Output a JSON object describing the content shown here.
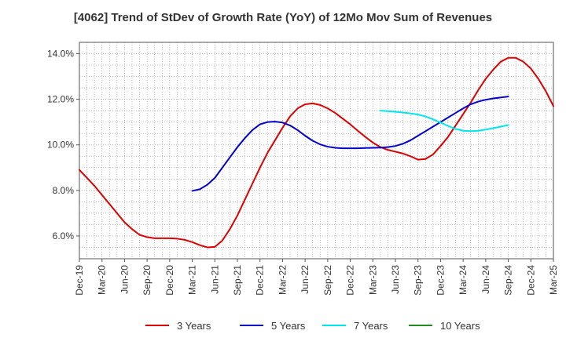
{
  "chart_data": {
    "type": "line",
    "title": "[4062]  Trend of StDev of Growth Rate (YoY) of 12Mo Mov Sum of Revenues",
    "xlabel": "",
    "ylabel": "",
    "x_ticks": [
      "Dec-19",
      "Mar-20",
      "Jun-20",
      "Sep-20",
      "Dec-20",
      "Mar-21",
      "Jun-21",
      "Sep-21",
      "Dec-21",
      "Mar-22",
      "Jun-22",
      "Sep-22",
      "Dec-22",
      "Mar-23",
      "Jun-23",
      "Sep-23",
      "Dec-23",
      "Mar-24",
      "Jun-24",
      "Sep-24",
      "Dec-24",
      "Mar-25"
    ],
    "y_ticks": [
      "6.0%",
      "8.0%",
      "10.0%",
      "12.0%",
      "14.0%"
    ],
    "y_tick_values": [
      6,
      8,
      10,
      12,
      14
    ],
    "ylim": [
      5.0,
      14.5
    ],
    "x_range_months": [
      0,
      63
    ],
    "grid": true,
    "legend_position": "bottom",
    "series": [
      {
        "name": "3 Years",
        "color": "#dd0000",
        "points": [
          [
            0,
            8.9
          ],
          [
            1,
            8.55
          ],
          [
            2,
            8.2
          ],
          [
            3,
            7.8
          ],
          [
            4,
            7.4
          ],
          [
            5,
            7.0
          ],
          [
            6,
            6.6
          ],
          [
            7,
            6.3
          ],
          [
            8,
            6.05
          ],
          [
            9,
            5.95
          ],
          [
            10,
            5.9
          ],
          [
            11,
            5.9
          ],
          [
            12,
            5.9
          ],
          [
            13,
            5.88
          ],
          [
            14,
            5.83
          ],
          [
            15,
            5.73
          ],
          [
            16,
            5.6
          ],
          [
            17,
            5.5
          ],
          [
            18,
            5.52
          ],
          [
            19,
            5.8
          ],
          [
            20,
            6.3
          ],
          [
            21,
            6.9
          ],
          [
            22,
            7.6
          ],
          [
            23,
            8.3
          ],
          [
            24,
            9.0
          ],
          [
            25,
            9.65
          ],
          [
            26,
            10.2
          ],
          [
            27,
            10.75
          ],
          [
            28,
            11.25
          ],
          [
            29,
            11.6
          ],
          [
            30,
            11.78
          ],
          [
            31,
            11.82
          ],
          [
            32,
            11.75
          ],
          [
            33,
            11.6
          ],
          [
            34,
            11.4
          ],
          [
            35,
            11.15
          ],
          [
            36,
            10.9
          ],
          [
            37,
            10.62
          ],
          [
            38,
            10.35
          ],
          [
            39,
            10.1
          ],
          [
            40,
            9.9
          ],
          [
            41,
            9.78
          ],
          [
            42,
            9.7
          ],
          [
            43,
            9.62
          ],
          [
            44,
            9.5
          ],
          [
            45,
            9.35
          ],
          [
            46,
            9.38
          ],
          [
            47,
            9.58
          ],
          [
            48,
            9.95
          ],
          [
            49,
            10.35
          ],
          [
            50,
            10.85
          ],
          [
            51,
            11.35
          ],
          [
            52,
            11.85
          ],
          [
            53,
            12.4
          ],
          [
            54,
            12.9
          ],
          [
            55,
            13.3
          ],
          [
            56,
            13.65
          ],
          [
            57,
            13.82
          ],
          [
            58,
            13.82
          ],
          [
            59,
            13.65
          ],
          [
            60,
            13.35
          ],
          [
            61,
            12.9
          ],
          [
            62,
            12.35
          ],
          [
            63,
            11.7
          ]
        ]
      },
      {
        "name": "5 Years",
        "color": "#0000cc",
        "points": [
          [
            15,
            7.98
          ],
          [
            16,
            8.05
          ],
          [
            17,
            8.25
          ],
          [
            18,
            8.55
          ],
          [
            19,
            9.0
          ],
          [
            20,
            9.45
          ],
          [
            21,
            9.9
          ],
          [
            22,
            10.3
          ],
          [
            23,
            10.65
          ],
          [
            24,
            10.9
          ],
          [
            25,
            11.0
          ],
          [
            26,
            11.02
          ],
          [
            27,
            10.98
          ],
          [
            28,
            10.85
          ],
          [
            29,
            10.65
          ],
          [
            30,
            10.4
          ],
          [
            31,
            10.18
          ],
          [
            32,
            10.02
          ],
          [
            33,
            9.92
          ],
          [
            34,
            9.87
          ],
          [
            35,
            9.85
          ],
          [
            36,
            9.85
          ],
          [
            37,
            9.85
          ],
          [
            38,
            9.86
          ],
          [
            39,
            9.87
          ],
          [
            40,
            9.88
          ],
          [
            41,
            9.9
          ],
          [
            42,
            9.95
          ],
          [
            43,
            10.05
          ],
          [
            44,
            10.2
          ],
          [
            45,
            10.4
          ],
          [
            46,
            10.6
          ],
          [
            47,
            10.8
          ],
          [
            48,
            11.0
          ],
          [
            49,
            11.2
          ],
          [
            50,
            11.4
          ],
          [
            51,
            11.6
          ],
          [
            52,
            11.78
          ],
          [
            53,
            11.9
          ],
          [
            54,
            11.98
          ],
          [
            55,
            12.04
          ],
          [
            56,
            12.08
          ],
          [
            57,
            12.12
          ]
        ]
      },
      {
        "name": "7 Years",
        "color": "#00e5ee",
        "points": [
          [
            40,
            11.5
          ],
          [
            41,
            11.48
          ],
          [
            42,
            11.45
          ],
          [
            43,
            11.42
          ],
          [
            44,
            11.38
          ],
          [
            45,
            11.33
          ],
          [
            46,
            11.25
          ],
          [
            47,
            11.12
          ],
          [
            48,
            10.98
          ],
          [
            49,
            10.83
          ],
          [
            50,
            10.7
          ],
          [
            51,
            10.62
          ],
          [
            52,
            10.6
          ],
          [
            53,
            10.62
          ],
          [
            54,
            10.67
          ],
          [
            55,
            10.73
          ],
          [
            56,
            10.8
          ],
          [
            57,
            10.87
          ]
        ]
      },
      {
        "name": "10 Years",
        "color": "#228b22",
        "points": []
      }
    ]
  }
}
